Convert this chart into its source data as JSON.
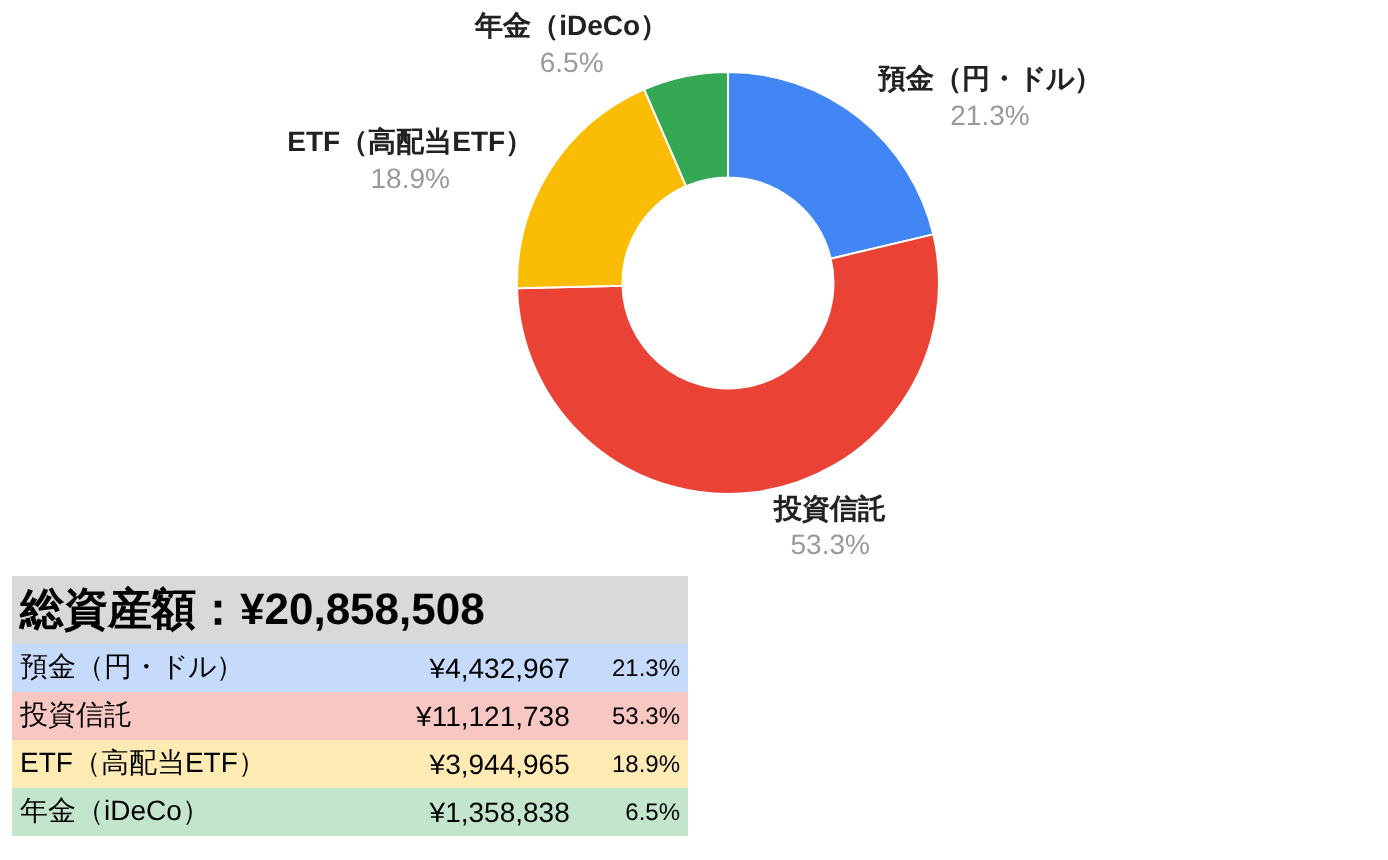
{
  "chart_data": {
    "type": "donut",
    "categories": [
      "預金（円・ドル）",
      "投資信託",
      "ETF（高配当ETF）",
      "年金（iDeCo）"
    ],
    "values": [
      21.3,
      53.3,
      18.9,
      6.5
    ],
    "value_labels": [
      "21.3%",
      "53.3%",
      "18.9%",
      "6.5%"
    ],
    "colors": [
      "#4285f4",
      "#ea4335",
      "#fbbc04",
      "#34a853"
    ],
    "legend": false,
    "annotations": [
      "総資産額：¥20,858,508",
      "¥4,432,967",
      "¥11,121,738",
      "¥3,944,965",
      "¥1,358,838"
    ]
  }
}
